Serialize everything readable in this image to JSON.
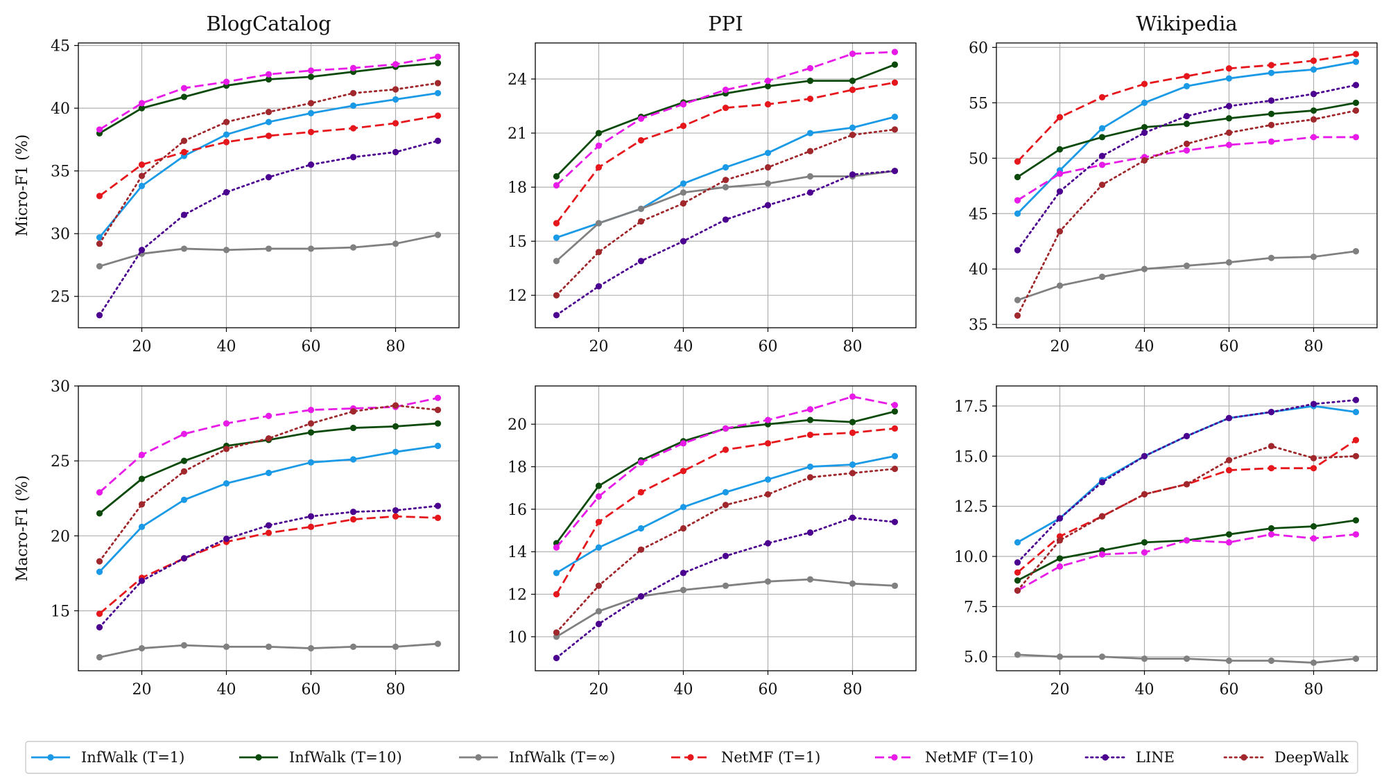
{
  "chart_data": [
    {
      "type": "line",
      "title": "BlogCatalog",
      "xlabel": "",
      "ylabel": "Micro-F1 (%)",
      "x": [
        10,
        20,
        30,
        40,
        50,
        60,
        70,
        80,
        90
      ],
      "xlim": [
        5,
        95
      ],
      "ylim": [
        22.5,
        45.2
      ],
      "xticks": [
        20,
        40,
        60,
        80
      ],
      "yticks": [
        25,
        30,
        35,
        40,
        45
      ],
      "grid": true,
      "series": [
        {
          "name": "InfWalk (T=1)",
          "values": [
            29.7,
            33.8,
            36.2,
            37.9,
            38.9,
            39.6,
            40.2,
            40.7,
            41.2
          ]
        },
        {
          "name": "InfWalk (T=10)",
          "values": [
            38.0,
            40.0,
            40.9,
            41.8,
            42.3,
            42.5,
            42.9,
            43.3,
            43.6
          ]
        },
        {
          "name": "InfWalk (T=∞)",
          "values": [
            27.4,
            28.4,
            28.8,
            28.7,
            28.8,
            28.8,
            28.9,
            29.2,
            29.9
          ]
        },
        {
          "name": "NetMF (T=1)",
          "values": [
            33.0,
            35.5,
            36.5,
            37.3,
            37.8,
            38.1,
            38.4,
            38.8,
            39.4
          ]
        },
        {
          "name": "NetMF (T=10)",
          "values": [
            38.3,
            40.4,
            41.6,
            42.1,
            42.7,
            43.0,
            43.2,
            43.5,
            44.1
          ]
        },
        {
          "name": "LINE",
          "values": [
            23.5,
            28.7,
            31.5,
            33.3,
            34.5,
            35.5,
            36.1,
            36.5,
            37.4
          ]
        },
        {
          "name": "DeepWalk",
          "values": [
            29.2,
            34.6,
            37.4,
            38.9,
            39.7,
            40.4,
            41.2,
            41.5,
            42.0
          ]
        }
      ]
    },
    {
      "type": "line",
      "title": "PPI",
      "xlabel": "",
      "ylabel": "",
      "x": [
        10,
        20,
        30,
        40,
        50,
        60,
        70,
        80,
        90
      ],
      "xlim": [
        5,
        95
      ],
      "ylim": [
        10.2,
        26.0
      ],
      "xticks": [
        20,
        40,
        60,
        80
      ],
      "yticks": [
        12,
        15,
        18,
        21,
        24
      ],
      "grid": true,
      "series": [
        {
          "name": "InfWalk (T=1)",
          "values": [
            15.2,
            16.0,
            16.8,
            18.2,
            19.1,
            19.9,
            21.0,
            21.3,
            21.9
          ]
        },
        {
          "name": "InfWalk (T=10)",
          "values": [
            18.6,
            21.0,
            21.9,
            22.7,
            23.2,
            23.6,
            23.9,
            23.9,
            24.8
          ]
        },
        {
          "name": "InfWalk (T=∞)",
          "values": [
            13.9,
            16.0,
            16.8,
            17.7,
            18.0,
            18.2,
            18.6,
            18.6,
            18.9
          ]
        },
        {
          "name": "NetMF (T=1)",
          "values": [
            16.0,
            19.1,
            20.6,
            21.4,
            22.4,
            22.6,
            22.9,
            23.4,
            23.8
          ]
        },
        {
          "name": "NetMF (T=10)",
          "values": [
            18.1,
            20.3,
            21.8,
            22.6,
            23.4,
            23.9,
            24.6,
            25.4,
            25.5
          ]
        },
        {
          "name": "LINE",
          "values": [
            10.9,
            12.5,
            13.9,
            15.0,
            16.2,
            17.0,
            17.7,
            18.7,
            18.9
          ]
        },
        {
          "name": "DeepWalk",
          "values": [
            12.0,
            14.4,
            16.1,
            17.1,
            18.4,
            19.1,
            20.0,
            20.9,
            21.2
          ]
        }
      ]
    },
    {
      "type": "line",
      "title": "Wikipedia",
      "xlabel": "",
      "ylabel": "",
      "x": [
        10,
        20,
        30,
        40,
        50,
        60,
        70,
        80,
        90
      ],
      "xlim": [
        5,
        95
      ],
      "ylim": [
        34.7,
        60.4
      ],
      "xticks": [
        20,
        40,
        60,
        80
      ],
      "yticks": [
        35,
        40,
        45,
        50,
        55,
        60
      ],
      "grid": true,
      "series": [
        {
          "name": "InfWalk (T=1)",
          "values": [
            45.0,
            48.9,
            52.7,
            55.0,
            56.5,
            57.2,
            57.7,
            58.0,
            58.7
          ]
        },
        {
          "name": "InfWalk (T=10)",
          "values": [
            48.3,
            50.8,
            51.9,
            52.8,
            53.1,
            53.6,
            54.0,
            54.3,
            55.0
          ]
        },
        {
          "name": "InfWalk (T=∞)",
          "values": [
            37.2,
            38.5,
            39.3,
            40.0,
            40.3,
            40.6,
            41.0,
            41.1,
            41.6
          ]
        },
        {
          "name": "NetMF (T=1)",
          "values": [
            49.7,
            53.7,
            55.5,
            56.7,
            57.4,
            58.1,
            58.4,
            58.8,
            59.4
          ]
        },
        {
          "name": "NetMF (T=10)",
          "values": [
            46.2,
            48.6,
            49.4,
            50.1,
            50.7,
            51.2,
            51.5,
            51.9,
            51.9
          ]
        },
        {
          "name": "LINE",
          "values": [
            41.7,
            47.0,
            50.2,
            52.3,
            53.8,
            54.7,
            55.2,
            55.8,
            56.6
          ]
        },
        {
          "name": "DeepWalk",
          "values": [
            35.8,
            43.4,
            47.6,
            49.8,
            51.3,
            52.3,
            53.0,
            53.5,
            54.3
          ]
        }
      ]
    },
    {
      "type": "line",
      "title": "",
      "xlabel": "",
      "ylabel": "Macro-F1 (%)",
      "x": [
        10,
        20,
        30,
        40,
        50,
        60,
        70,
        80,
        90
      ],
      "xlim": [
        5,
        95
      ],
      "ylim": [
        11.0,
        30.0
      ],
      "xticks": [
        20,
        40,
        60,
        80
      ],
      "yticks": [
        15,
        20,
        25,
        30
      ],
      "grid": true,
      "series": [
        {
          "name": "InfWalk (T=1)",
          "values": [
            17.6,
            20.6,
            22.4,
            23.5,
            24.2,
            24.9,
            25.1,
            25.6,
            26.0
          ]
        },
        {
          "name": "InfWalk (T=10)",
          "values": [
            21.5,
            23.8,
            25.0,
            26.0,
            26.4,
            26.9,
            27.2,
            27.3,
            27.5
          ]
        },
        {
          "name": "InfWalk (T=∞)",
          "values": [
            11.9,
            12.5,
            12.7,
            12.6,
            12.6,
            12.5,
            12.6,
            12.6,
            12.8
          ]
        },
        {
          "name": "NetMF (T=1)",
          "values": [
            14.8,
            17.2,
            18.5,
            19.6,
            20.2,
            20.6,
            21.1,
            21.3,
            21.2
          ]
        },
        {
          "name": "NetMF (T=10)",
          "values": [
            22.9,
            25.4,
            26.8,
            27.5,
            28.0,
            28.4,
            28.5,
            28.6,
            29.2
          ]
        },
        {
          "name": "LINE",
          "values": [
            13.9,
            17.0,
            18.5,
            19.8,
            20.7,
            21.3,
            21.6,
            21.7,
            22.0
          ]
        },
        {
          "name": "DeepWalk",
          "values": [
            18.3,
            22.1,
            24.3,
            25.8,
            26.5,
            27.5,
            28.3,
            28.7,
            28.4
          ]
        }
      ]
    },
    {
      "type": "line",
      "title": "",
      "xlabel": "",
      "ylabel": "",
      "x": [
        10,
        20,
        30,
        40,
        50,
        60,
        70,
        80,
        90
      ],
      "xlim": [
        5,
        95
      ],
      "ylim": [
        8.4,
        21.8
      ],
      "xticks": [
        20,
        40,
        60,
        80
      ],
      "yticks": [
        10,
        12,
        14,
        16,
        18,
        20
      ],
      "grid": true,
      "series": [
        {
          "name": "InfWalk (T=1)",
          "values": [
            13.0,
            14.2,
            15.1,
            16.1,
            16.8,
            17.4,
            18.0,
            18.1,
            18.5
          ]
        },
        {
          "name": "InfWalk (T=10)",
          "values": [
            14.4,
            17.1,
            18.3,
            19.2,
            19.8,
            20.0,
            20.2,
            20.1,
            20.6
          ]
        },
        {
          "name": "InfWalk (T=∞)",
          "values": [
            10.0,
            11.2,
            11.9,
            12.2,
            12.4,
            12.6,
            12.7,
            12.5,
            12.4
          ]
        },
        {
          "name": "NetMF (T=1)",
          "values": [
            12.0,
            15.4,
            16.8,
            17.8,
            18.8,
            19.1,
            19.5,
            19.6,
            19.8
          ]
        },
        {
          "name": "NetMF (T=10)",
          "values": [
            14.2,
            16.6,
            18.2,
            19.1,
            19.8,
            20.2,
            20.7,
            21.3,
            20.9
          ]
        },
        {
          "name": "LINE",
          "values": [
            9.0,
            10.6,
            11.9,
            13.0,
            13.8,
            14.4,
            14.9,
            15.6,
            15.4
          ]
        },
        {
          "name": "DeepWalk",
          "values": [
            10.2,
            12.4,
            14.1,
            15.1,
            16.2,
            16.7,
            17.5,
            17.7,
            17.9
          ]
        }
      ]
    },
    {
      "type": "line",
      "title": "",
      "xlabel": "",
      "ylabel": "",
      "x": [
        10,
        20,
        30,
        40,
        50,
        60,
        70,
        80,
        90
      ],
      "xlim": [
        5,
        95
      ],
      "ylim": [
        4.3,
        18.5
      ],
      "xticks": [
        20,
        40,
        60,
        80
      ],
      "yticks": [
        5.0,
        7.5,
        10.0,
        12.5,
        15.0,
        17.5
      ],
      "ytick_labels": [
        "5.0",
        "7.5",
        "10.0",
        "12.5",
        "15.0",
        "17.5"
      ],
      "grid": true,
      "series": [
        {
          "name": "InfWalk (T=1)",
          "values": [
            10.7,
            11.9,
            13.8,
            15.0,
            16.0,
            16.9,
            17.2,
            17.5,
            17.2
          ]
        },
        {
          "name": "InfWalk (T=10)",
          "values": [
            8.8,
            9.9,
            10.3,
            10.7,
            10.8,
            11.1,
            11.4,
            11.5,
            11.8
          ]
        },
        {
          "name": "InfWalk (T=∞)",
          "values": [
            5.1,
            5.0,
            5.0,
            4.9,
            4.9,
            4.8,
            4.8,
            4.7,
            4.9
          ]
        },
        {
          "name": "NetMF (T=1)",
          "values": [
            9.2,
            11.0,
            12.0,
            13.1,
            13.6,
            14.3,
            14.4,
            14.4,
            15.8
          ]
        },
        {
          "name": "NetMF (T=10)",
          "values": [
            8.3,
            9.5,
            10.1,
            10.2,
            10.8,
            10.7,
            11.1,
            10.9,
            11.1
          ]
        },
        {
          "name": "LINE",
          "values": [
            9.7,
            11.9,
            13.7,
            15.0,
            16.0,
            16.9,
            17.2,
            17.6,
            17.8
          ]
        },
        {
          "name": "DeepWalk",
          "values": [
            8.3,
            10.8,
            12.0,
            13.1,
            13.6,
            14.8,
            15.5,
            14.9,
            15.0
          ]
        }
      ]
    }
  ],
  "legend": {
    "placement": "bottom",
    "entries": [
      {
        "name": "InfWalk (T=1)",
        "color": "#1a9ae6",
        "style": "solid"
      },
      {
        "name": "InfWalk (T=10)",
        "color": "#0b4a0b",
        "style": "solid"
      },
      {
        "name": "InfWalk (T=∞)",
        "color": "#808080",
        "style": "solid"
      },
      {
        "name": "NetMF (T=1)",
        "color": "#e6171c",
        "style": "dashed"
      },
      {
        "name": "NetMF (T=10)",
        "color": "#e81ae8",
        "style": "dashed"
      },
      {
        "name": "LINE",
        "color": "#4b0090",
        "style": "dotted"
      },
      {
        "name": "DeepWalk",
        "color": "#a0282c",
        "style": "dotted"
      }
    ]
  }
}
